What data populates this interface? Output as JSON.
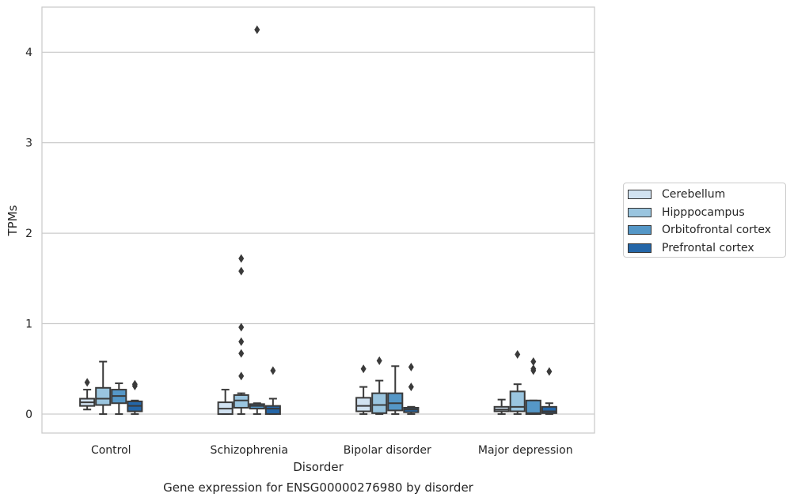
{
  "chart_data": {
    "type": "box",
    "title": "Gene expression for ENSG00000276980 by disorder",
    "xlabel": "Disorder",
    "ylabel": "TPMs",
    "ylim": [
      -0.21,
      4.5
    ],
    "yticks": [
      0,
      1,
      2,
      3,
      4
    ],
    "grid": true,
    "legend_position": "right",
    "categories": [
      "Control",
      "Schizophrenia",
      "Bipolar disorder",
      "Major depression"
    ],
    "series": [
      {
        "name": "Cerebellum",
        "color": "#d1e2f1",
        "boxes": [
          {
            "whisker_low": 0.05,
            "q1": 0.09,
            "median": 0.13,
            "q3": 0.17,
            "whisker_high": 0.27,
            "outliers": [
              0.35
            ]
          },
          {
            "whisker_low": 0.0,
            "q1": 0.0,
            "median": 0.06,
            "q3": 0.13,
            "whisker_high": 0.27,
            "outliers": []
          },
          {
            "whisker_low": 0.0,
            "q1": 0.03,
            "median": 0.09,
            "q3": 0.18,
            "whisker_high": 0.3,
            "outliers": [
              0.5
            ]
          },
          {
            "whisker_low": 0.0,
            "q1": 0.03,
            "median": 0.05,
            "q3": 0.08,
            "whisker_high": 0.16,
            "outliers": []
          }
        ]
      },
      {
        "name": "Hipppocampus",
        "color": "#9ac5df",
        "boxes": [
          {
            "whisker_low": 0.0,
            "q1": 0.1,
            "median": 0.17,
            "q3": 0.29,
            "whisker_high": 0.58,
            "outliers": []
          },
          {
            "whisker_low": 0.0,
            "q1": 0.07,
            "median": 0.15,
            "q3": 0.21,
            "whisker_high": 0.23,
            "outliers": [
              0.42,
              0.67,
              0.8,
              0.96,
              1.58,
              1.72
            ]
          },
          {
            "whisker_low": 0.0,
            "q1": 0.01,
            "median": 0.1,
            "q3": 0.23,
            "whisker_high": 0.37,
            "outliers": [
              0.59
            ]
          },
          {
            "whisker_low": 0.0,
            "q1": 0.03,
            "median": 0.08,
            "q3": 0.25,
            "whisker_high": 0.33,
            "outliers": [
              0.66
            ]
          }
        ]
      },
      {
        "name": "Orbitofrontal cortex",
        "color": "#5597c7",
        "boxes": [
          {
            "whisker_low": 0.0,
            "q1": 0.12,
            "median": 0.2,
            "q3": 0.27,
            "whisker_high": 0.34,
            "outliers": []
          },
          {
            "whisker_low": 0.0,
            "q1": 0.06,
            "median": 0.09,
            "q3": 0.11,
            "whisker_high": 0.12,
            "outliers": [
              4.25
            ]
          },
          {
            "whisker_low": 0.0,
            "q1": 0.04,
            "median": 0.12,
            "q3": 0.23,
            "whisker_high": 0.53,
            "outliers": []
          },
          {
            "whisker_low": 0.0,
            "q1": 0.0,
            "median": 0.01,
            "q3": 0.15,
            "whisker_high": 0.15,
            "outliers": [
              0.48,
              0.5,
              0.58
            ]
          }
        ]
      },
      {
        "name": "Prefrontal cortex",
        "color": "#2466a8",
        "boxes": [
          {
            "whisker_low": 0.0,
            "q1": 0.03,
            "median": 0.09,
            "q3": 0.14,
            "whisker_high": 0.15,
            "outliers": [
              0.31,
              0.33
            ]
          },
          {
            "whisker_low": 0.0,
            "q1": 0.0,
            "median": 0.06,
            "q3": 0.09,
            "whisker_high": 0.17,
            "outliers": [
              0.48
            ]
          },
          {
            "whisker_low": 0.0,
            "q1": 0.02,
            "median": 0.05,
            "q3": 0.07,
            "whisker_high": 0.08,
            "outliers": [
              0.3,
              0.52
            ]
          },
          {
            "whisker_low": 0.0,
            "q1": 0.01,
            "median": 0.03,
            "q3": 0.08,
            "whisker_high": 0.12,
            "outliers": [
              0.47
            ]
          }
        ]
      }
    ]
  }
}
